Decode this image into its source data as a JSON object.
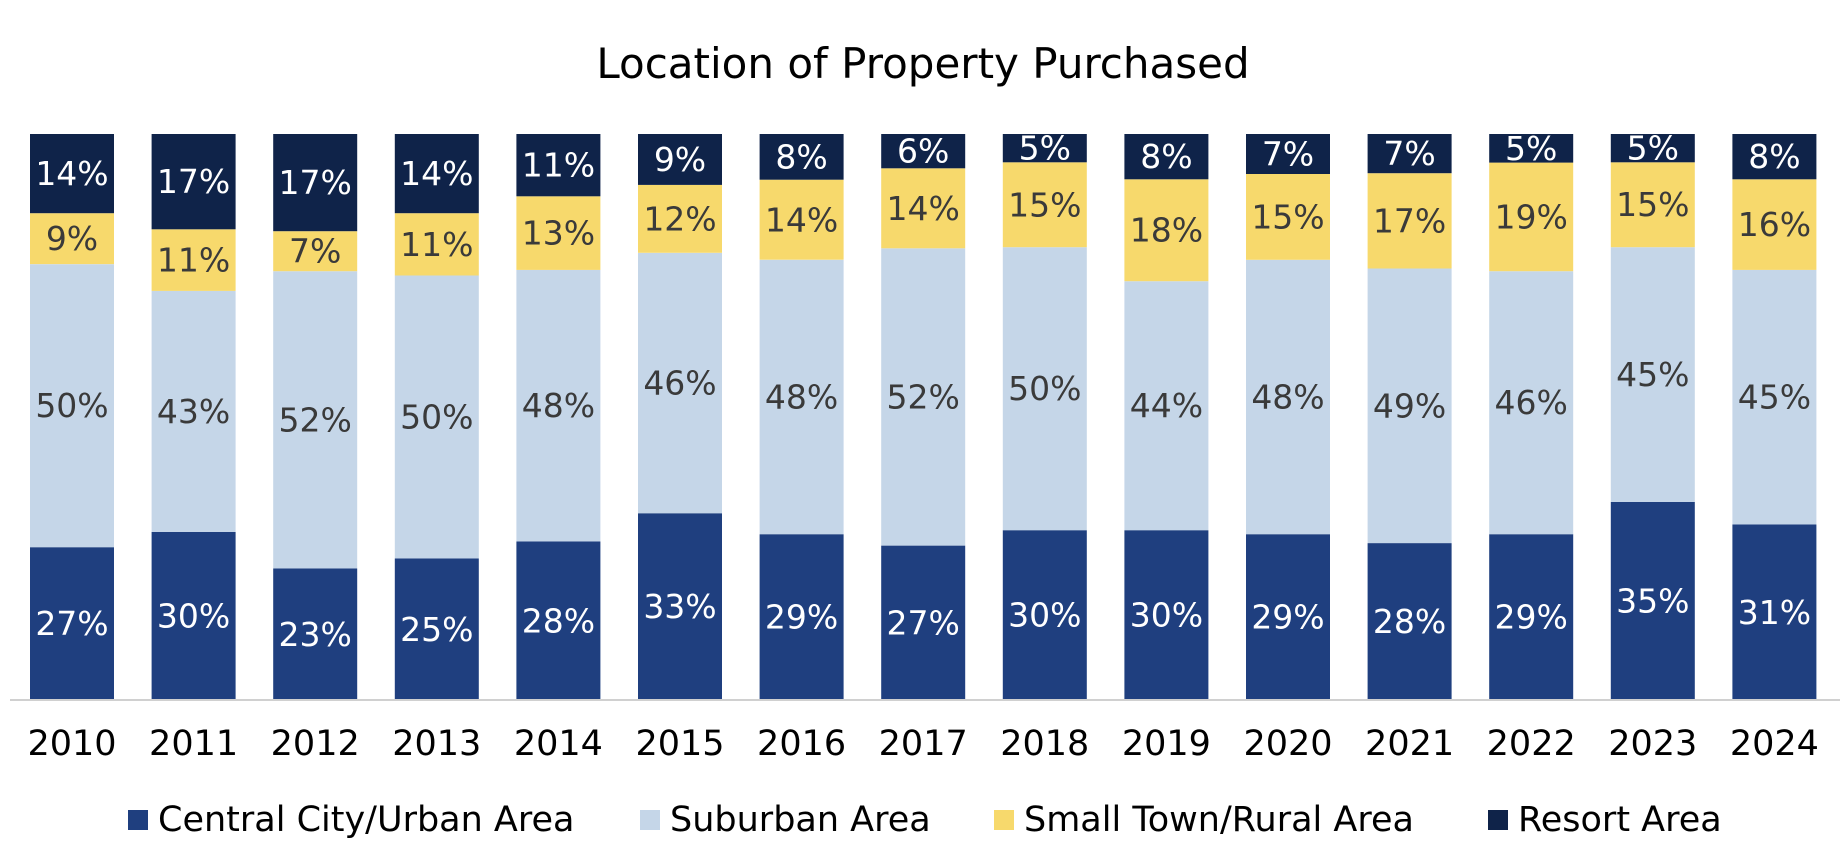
{
  "chart_data": {
    "type": "bar",
    "stacked": true,
    "title": "Location of Property Purchased",
    "xlabel": "",
    "ylabel": "",
    "ylim": [
      0,
      100
    ],
    "grid": false,
    "legend_position": "bottom",
    "categories": [
      "2010",
      "2011",
      "2012",
      "2013",
      "2014",
      "2015",
      "2016",
      "2017",
      "2018",
      "2019",
      "2020",
      "2021",
      "2022",
      "2023",
      "2024"
    ],
    "series": [
      {
        "name": "Central City/Urban Area",
        "color": "#1f3f7f",
        "label_color": "#ffffff",
        "values": [
          27,
          30,
          23,
          25,
          28,
          33,
          29,
          27,
          30,
          30,
          29,
          28,
          29,
          35,
          31
        ],
        "labels": [
          "27%",
          "30%",
          "23%",
          "25%",
          "28%",
          "33%",
          "29%",
          "27%",
          "30%",
          "30%",
          "29%",
          "28%",
          "29%",
          "35%",
          "31%"
        ]
      },
      {
        "name": "Suburban Area",
        "color": "#c5d6e8",
        "label_color": "#3a3a3a",
        "values": [
          50,
          43,
          52,
          50,
          48,
          46,
          48,
          52,
          50,
          44,
          48,
          49,
          46,
          45,
          45
        ],
        "labels": [
          "50%",
          "43%",
          "52%",
          "50%",
          "48%",
          "46%",
          "48%",
          "52%",
          "50%",
          "44%",
          "48%",
          "49%",
          "46%",
          "45%",
          "45%"
        ]
      },
      {
        "name": "Small Town/Rural Area",
        "color": "#f7d96c",
        "label_color": "#3a3a3a",
        "values": [
          9,
          11,
          7,
          11,
          13,
          12,
          14,
          14,
          15,
          18,
          15,
          17,
          19,
          15,
          16
        ],
        "labels": [
          "9%",
          "11%",
          "7%",
          "11%",
          "13%",
          "12%",
          "14%",
          "14%",
          "15%",
          "18%",
          "15%",
          "17%",
          "19%",
          "15%",
          "16%"
        ]
      },
      {
        "name": "Resort Area",
        "color": "#0f2349",
        "label_color": "#ffffff",
        "values": [
          14,
          17,
          17,
          14,
          11,
          9,
          8,
          6,
          5,
          8,
          7,
          7,
          5,
          5,
          8
        ],
        "labels": [
          "14%",
          "17%",
          "17%",
          "14%",
          "11%",
          "9%",
          "8%",
          "6%",
          "5%",
          "8%",
          "7%",
          "7%",
          "5%",
          "5%",
          "8%"
        ]
      }
    ]
  }
}
